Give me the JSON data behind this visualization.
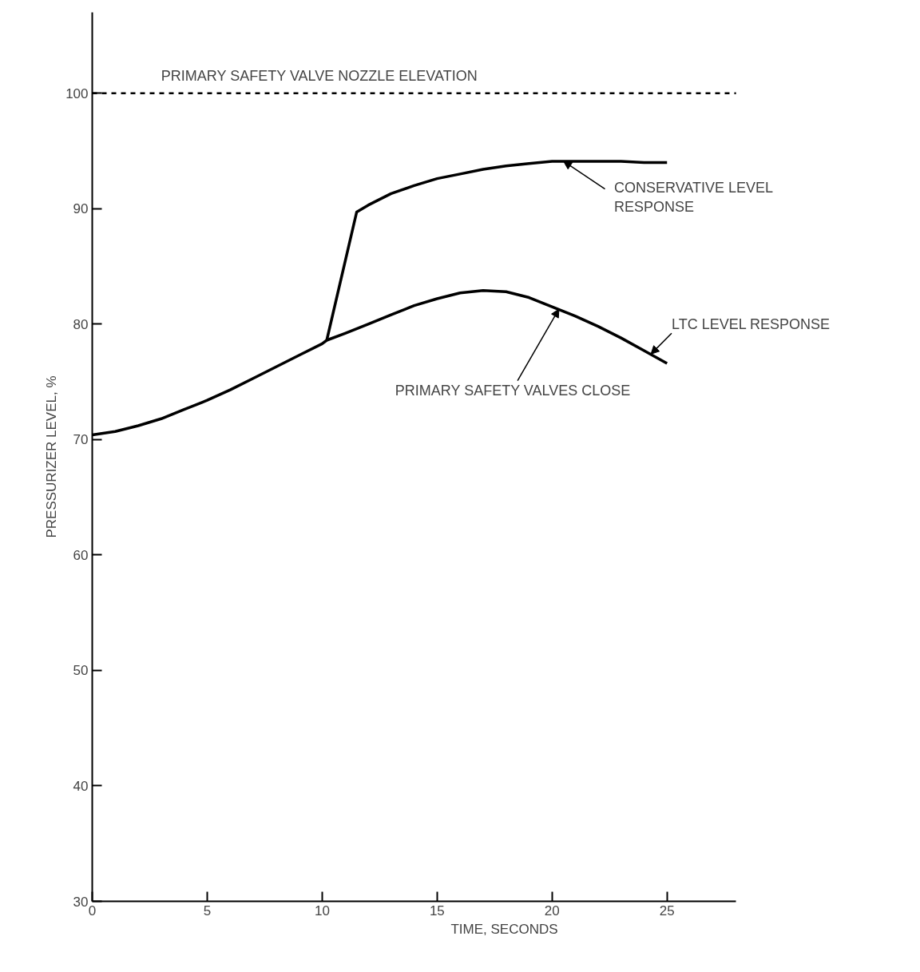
{
  "chart_data": {
    "type": "line",
    "xlabel": "TIME, SECONDS",
    "ylabel": "PRESSURIZER LEVEL, %",
    "xlim": [
      0,
      28
    ],
    "ylim": [
      30,
      107
    ],
    "xticks": [
      0,
      5,
      10,
      15,
      20,
      25
    ],
    "yticks": [
      30,
      40,
      50,
      60,
      70,
      80,
      90,
      100
    ],
    "grid": false,
    "marker": "none",
    "line_style": "solid",
    "series": [
      {
        "color": "#000000",
        "x": [
          0,
          1,
          2,
          3,
          4,
          5,
          6,
          7,
          8,
          9,
          10,
          10.2,
          11,
          12,
          13,
          14,
          15,
          16,
          17,
          18,
          19,
          20,
          21,
          22,
          23,
          24,
          25
        ],
        "values": [
          70.4,
          70.7,
          71.2,
          71.8,
          72.6,
          73.4,
          74.3,
          75.3,
          76.3,
          77.3,
          78.3,
          78.6,
          79.2,
          80.0,
          80.8,
          81.6,
          82.2,
          82.7,
          82.9,
          82.8,
          82.3,
          81.5,
          80.7,
          79.8,
          78.8,
          77.7,
          76.6
        ]
      },
      {
        "color": "#000000",
        "x": [
          10.2,
          11.5,
          12,
          13,
          14,
          15,
          16,
          17,
          18,
          19,
          20,
          21,
          22,
          23,
          24,
          25
        ],
        "values": [
          78.6,
          89.7,
          90.3,
          91.3,
          92.0,
          92.6,
          93.0,
          93.4,
          93.7,
          93.9,
          94.1,
          94.1,
          94.1,
          94.1,
          94.0,
          94.0
        ]
      }
    ],
    "ref_lines": [
      {
        "axis": "y",
        "value": 100,
        "label": "PRIMARY SAFETY VALVE NOZZLE ELEVATION",
        "line_style": "dashed",
        "color": "#000000"
      }
    ],
    "annotations": [
      {
        "text": "CONSERVATIVE LEVEL\nRESPONSE",
        "x": 20.5,
        "y": 94.1
      },
      {
        "text": "LTC LEVEL RESPONSE",
        "x": 24.3,
        "y": 77.4
      },
      {
        "text": "PRIMARY SAFETY VALVES CLOSE",
        "x": 20.3,
        "y": 81.3
      }
    ]
  }
}
